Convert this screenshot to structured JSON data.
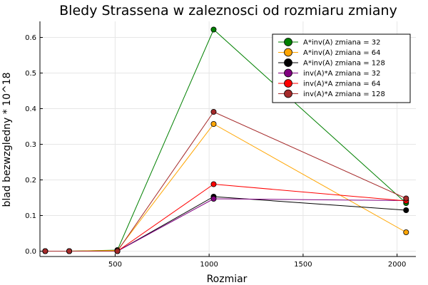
{
  "chart_data": {
    "type": "line",
    "title": "Bledy Strassena w zaleznosci od rozmiaru zmiany",
    "xlabel": "Rozmiar",
    "ylabel": "blad bezwzgledny * 10^18",
    "xlim": [
      100,
      2100
    ],
    "ylim": [
      -0.015,
      0.645
    ],
    "xticks": [
      500,
      1000,
      1500,
      2000
    ],
    "yticks": [
      0.0,
      0.1,
      0.2,
      0.3,
      0.4,
      0.5,
      0.6
    ],
    "xtick_labels": [
      "500",
      "1000",
      "1500",
      "2000"
    ],
    "ytick_labels": [
      "0.0",
      "0.1",
      "0.2",
      "0.3",
      "0.4",
      "0.5",
      "0.6"
    ],
    "grid": true,
    "legend_position": "top-right",
    "x": [
      128,
      256,
      512,
      1024,
      2048
    ],
    "series": [
      {
        "name": "A*inv(A) zmiana = 32",
        "color": "#008000",
        "values": [
          0.0,
          0.0,
          0.003,
          0.622,
          0.135
        ]
      },
      {
        "name": "A*inv(A) zmiana = 64",
        "color": "#ffa500",
        "values": [
          0.0,
          0.0,
          0.002,
          0.357,
          0.053
        ]
      },
      {
        "name": "A*inv(A) zmiana = 128",
        "color": "#000000",
        "values": [
          0.0,
          0.0,
          0.0,
          0.153,
          0.115
        ]
      },
      {
        "name": "inv(A)*A zmiana = 32",
        "color": "#800080",
        "values": [
          0.0,
          0.0,
          0.0,
          0.147,
          0.142
        ]
      },
      {
        "name": "inv(A)*A zmiana = 64",
        "color": "#ff0000",
        "values": [
          0.0,
          0.0,
          0.0,
          0.188,
          0.141
        ]
      },
      {
        "name": "inv(A)*A zmiana = 128",
        "color": "#a52a2a",
        "values": [
          0.0,
          0.0,
          0.0,
          0.391,
          0.148
        ]
      }
    ]
  }
}
